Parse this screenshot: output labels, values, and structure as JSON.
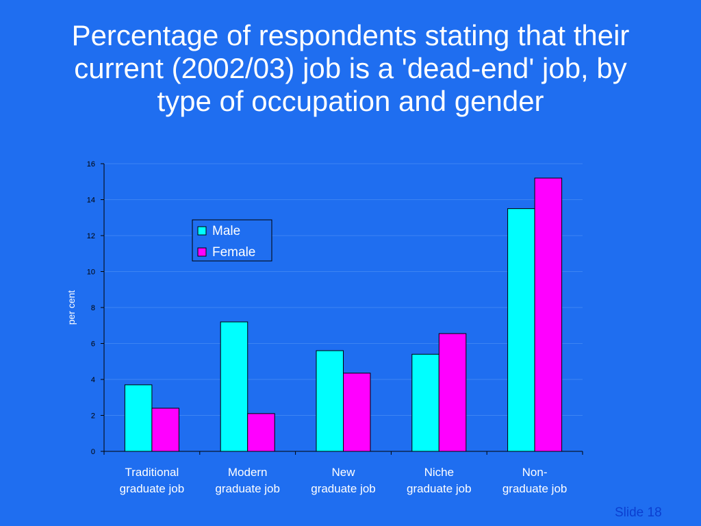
{
  "slide": {
    "title_lines": [
      "Percentage of respondents stating that their",
      "current (2002/03) job is a 'dead-end' job, by",
      "type of occupation and gender"
    ],
    "slide_number": "Slide 18"
  },
  "colors": {
    "background": "#1f6ef0",
    "male": "#00ffff",
    "female": "#ff00ff",
    "text": "#ffffff"
  },
  "chart_data": {
    "type": "bar",
    "title": "Percentage of respondents stating that their current (2002/03) job is a 'dead-end' job, by type of occupation and gender",
    "categories": [
      [
        "Traditional",
        "graduate job"
      ],
      [
        "Modern",
        "graduate job"
      ],
      [
        "New",
        "graduate job"
      ],
      [
        "Niche",
        "graduate job"
      ],
      [
        "Non-",
        "graduate job"
      ]
    ],
    "series": [
      {
        "name": "Male",
        "values": [
          3.7,
          7.2,
          5.6,
          5.4,
          13.5
        ]
      },
      {
        "name": "Female",
        "values": [
          2.4,
          2.1,
          4.35,
          6.55,
          15.2
        ]
      }
    ],
    "xlabel": "",
    "ylabel": "per cent",
    "ylim": [
      0,
      16
    ],
    "yticks": [
      0,
      2,
      4,
      6,
      8,
      10,
      12,
      14,
      16
    ],
    "grid": true,
    "legend": "upper-left inside plot"
  }
}
